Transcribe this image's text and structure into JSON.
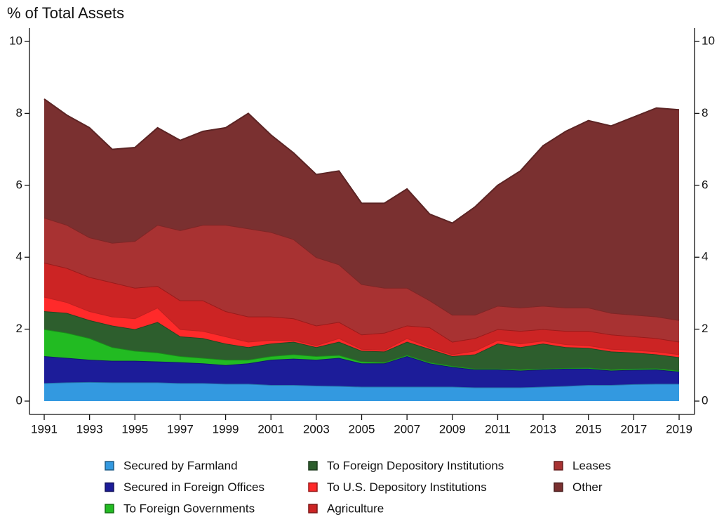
{
  "chart_data": {
    "type": "stacked_area",
    "y_label": "% of Total Assets",
    "x": [
      1991,
      1992,
      1993,
      1994,
      1995,
      1996,
      1997,
      1998,
      1999,
      2000,
      2001,
      2002,
      2003,
      2004,
      2005,
      2006,
      2007,
      2008,
      2009,
      2010,
      2011,
      2012,
      2013,
      2014,
      2015,
      2016,
      2017,
      2018,
      2019
    ],
    "xlim": [
      1990.35,
      2019.68
    ],
    "xticks": [
      1991,
      1993,
      1995,
      1997,
      1999,
      2001,
      2003,
      2005,
      2007,
      2009,
      2011,
      2013,
      2015,
      2017,
      2019
    ],
    "ylim": [
      0,
      10
    ],
    "yticks": [
      0,
      2,
      4,
      6,
      8,
      10
    ],
    "y2lim": [
      0,
      10
    ],
    "y2ticks": [
      0,
      2,
      4,
      6,
      8,
      10
    ],
    "grid": false,
    "series": [
      {
        "name": "Secured by Farmland",
        "color": "#3399e0",
        "values": [
          0.5,
          0.52,
          0.53,
          0.52,
          0.52,
          0.52,
          0.5,
          0.5,
          0.48,
          0.48,
          0.45,
          0.45,
          0.43,
          0.42,
          0.4,
          0.4,
          0.4,
          0.4,
          0.4,
          0.38,
          0.38,
          0.38,
          0.4,
          0.42,
          0.45,
          0.45,
          0.47,
          0.48,
          0.48
        ]
      },
      {
        "name": "Secured in Foreign Offices",
        "color": "#1c1c99",
        "values": [
          0.75,
          0.68,
          0.62,
          0.6,
          0.6,
          0.58,
          0.58,
          0.55,
          0.52,
          0.57,
          0.7,
          0.73,
          0.72,
          0.78,
          0.65,
          0.65,
          0.85,
          0.65,
          0.55,
          0.5,
          0.5,
          0.47,
          0.48,
          0.48,
          0.45,
          0.4,
          0.4,
          0.4,
          0.34
        ]
      },
      {
        "name": "To Foreign Governments",
        "color": "#22bb22",
        "values": [
          0.75,
          0.7,
          0.6,
          0.38,
          0.28,
          0.25,
          0.17,
          0.15,
          0.15,
          0.1,
          0.1,
          0.12,
          0.1,
          0.08,
          0.05,
          0.03,
          0.03,
          0.03,
          0.03,
          0.02,
          0.02,
          0.03,
          0.02,
          0.02,
          0.03,
          0.03,
          0.03,
          0.03,
          0.03
        ]
      },
      {
        "name": "To Foreign Depository Institutions",
        "color": "#2d5e2d",
        "values": [
          0.5,
          0.55,
          0.5,
          0.6,
          0.6,
          0.85,
          0.55,
          0.55,
          0.45,
          0.35,
          0.35,
          0.35,
          0.25,
          0.37,
          0.3,
          0.3,
          0.37,
          0.37,
          0.27,
          0.4,
          0.7,
          0.62,
          0.7,
          0.58,
          0.55,
          0.5,
          0.45,
          0.39,
          0.37
        ]
      },
      {
        "name": "To U.S. Depository Institutions",
        "color": "#ff2a2a",
        "values": [
          0.4,
          0.3,
          0.25,
          0.25,
          0.3,
          0.4,
          0.2,
          0.2,
          0.2,
          0.15,
          0.1,
          0.05,
          0.05,
          0.1,
          0.05,
          0.04,
          0.1,
          0.05,
          0.05,
          0.1,
          0.1,
          0.1,
          0.08,
          0.08,
          0.07,
          0.07,
          0.07,
          0.08,
          0.08
        ]
      },
      {
        "name": "Agriculture",
        "color": "#cc2424",
        "values": [
          0.95,
          0.95,
          0.95,
          0.95,
          0.85,
          0.6,
          0.8,
          0.85,
          0.7,
          0.7,
          0.65,
          0.6,
          0.55,
          0.45,
          0.4,
          0.48,
          0.35,
          0.55,
          0.35,
          0.35,
          0.3,
          0.35,
          0.32,
          0.37,
          0.4,
          0.4,
          0.38,
          0.37,
          0.35
        ]
      },
      {
        "name": "Leases",
        "color": "#a83232",
        "values": [
          1.25,
          1.2,
          1.1,
          1.1,
          1.3,
          1.7,
          1.95,
          2.1,
          2.4,
          2.45,
          2.35,
          2.2,
          1.9,
          1.6,
          1.4,
          1.25,
          1.05,
          0.75,
          0.75,
          0.65,
          0.65,
          0.65,
          0.65,
          0.65,
          0.65,
          0.6,
          0.6,
          0.6,
          0.6
        ]
      },
      {
        "name": "Other",
        "color": "#7a3030",
        "values": [
          3.3,
          3.05,
          3.05,
          2.6,
          2.6,
          2.7,
          2.5,
          2.6,
          2.7,
          3.2,
          2.7,
          2.4,
          2.3,
          2.6,
          2.25,
          2.35,
          2.75,
          2.4,
          2.55,
          3.0,
          3.35,
          3.8,
          4.45,
          4.9,
          5.2,
          5.2,
          5.5,
          5.8,
          5.85
        ]
      }
    ]
  }
}
